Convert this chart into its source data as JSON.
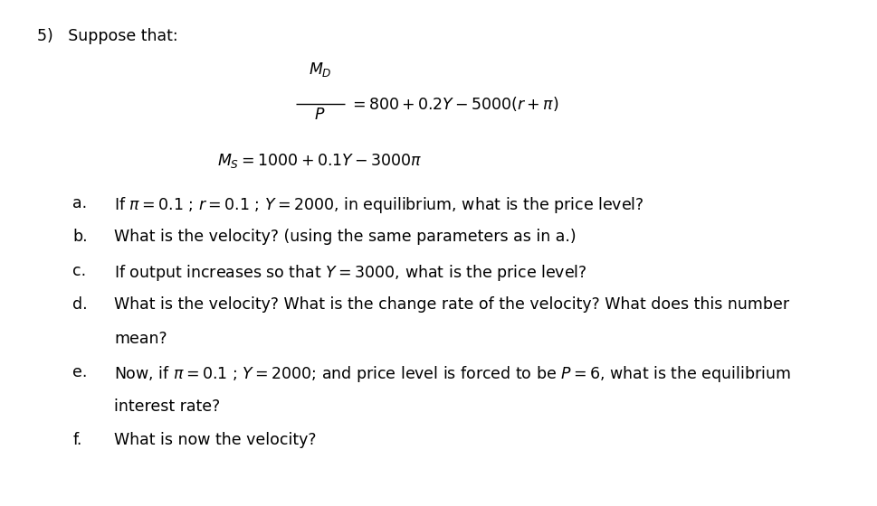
{
  "background_color": "#ffffff",
  "title_number": "5)",
  "title_text": "Suppose that:",
  "items": [
    {
      "label": "a.",
      "text": "If $\\pi = 0.1$ ; $r = 0.1$ ; $Y = 2000$, in equilibrium, what is the price level?"
    },
    {
      "label": "b.",
      "text": "What is the velocity? (using the same parameters as in a.)"
    },
    {
      "label": "c.",
      "text": "If output increases so that $Y = 3000$, what is the price level?"
    },
    {
      "label": "d.",
      "text": "What is the velocity? What is the change rate of the velocity? What does this number"
    },
    {
      "label": "",
      "text": "mean?"
    },
    {
      "label": "e.",
      "text": "Now, if $\\pi = 0.1$ ; $Y = 2000$; and price level is forced to be $P = 6$, what is the equilibrium"
    },
    {
      "label": "",
      "text": "interest rate?"
    },
    {
      "label": "f.",
      "text": "What is now the velocity?"
    }
  ],
  "font_size": 12.5
}
